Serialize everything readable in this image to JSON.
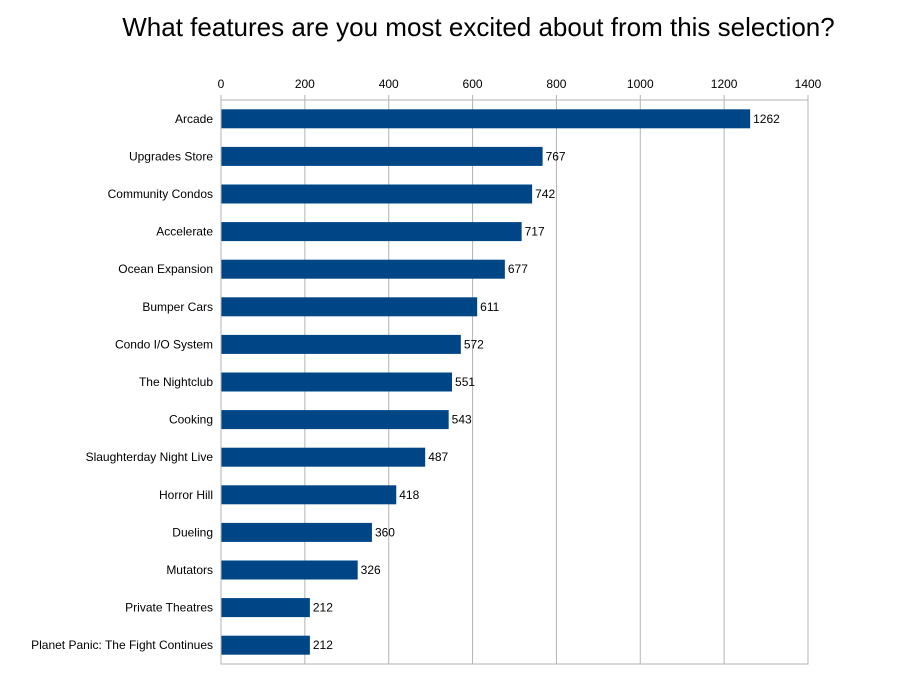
{
  "chart_data": {
    "type": "bar",
    "orientation": "horizontal",
    "title": "What features are you most excited about from this selection?",
    "xlabel": "",
    "ylabel": "",
    "xlim": [
      0,
      1400
    ],
    "ticks": [
      "0",
      "200",
      "400",
      "600",
      "800",
      "1000",
      "1200",
      "1400"
    ],
    "tick_values": [
      0,
      200,
      400,
      600,
      800,
      1000,
      1200,
      1400
    ],
    "grid": true,
    "bar_color": "#004586",
    "categories": [
      "Arcade",
      "Upgrades Store",
      "Community Condos",
      "Accelerate",
      "Ocean Expansion",
      "Bumper Cars",
      "Condo I/O System",
      "The Nightclub",
      "Cooking",
      "Slaughterday Night Live",
      "Horror Hill",
      "Dueling",
      "Mutators",
      "Private Theatres",
      "Planet Panic: The Fight Continues"
    ],
    "values": [
      1262,
      767,
      742,
      717,
      677,
      611,
      572,
      551,
      543,
      487,
      418,
      360,
      326,
      212,
      212
    ],
    "data_labels": [
      "1262",
      "767",
      "742",
      "717",
      "677",
      "611",
      "572",
      "551",
      "543",
      "487",
      "418",
      "360",
      "326",
      "212",
      "212"
    ]
  }
}
